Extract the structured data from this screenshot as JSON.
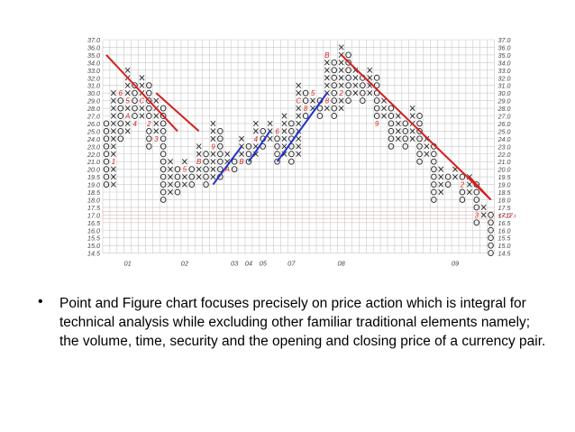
{
  "chart_data": {
    "type": "point-and-figure",
    "y_ticks": [
      "37.0",
      "36.0",
      "35.0",
      "34.0",
      "33.0",
      "32.0",
      "31.0",
      "30.0",
      "29.0",
      "28.0",
      "27.0",
      "26.0",
      "25.0",
      "24.0",
      "23.0",
      "22.0",
      "21.0",
      "20.0",
      "19.5",
      "19.0",
      "18.5",
      "18.0",
      "17.5",
      "17.0",
      "16.5",
      "16.0",
      "15.5",
      "15.0",
      "14.5"
    ],
    "current_price_label": "<<17.06",
    "x_labels": [
      "01",
      "02",
      "03",
      "04",
      "05",
      "07",
      "08",
      "09"
    ],
    "x_label_cols": [
      3,
      11,
      18,
      20,
      22,
      26,
      33,
      49
    ],
    "columns": [
      {
        "type": "O",
        "top": 19,
        "bottom": 11
      },
      {
        "type": "X",
        "top": 7,
        "bottom": 19
      },
      {
        "type": "O",
        "top": 7,
        "bottom": 13
      },
      {
        "type": "X",
        "top": 12,
        "bottom": 4
      },
      {
        "type": "O",
        "top": 6,
        "bottom": 11
      },
      {
        "type": "X",
        "top": 10,
        "bottom": 5
      },
      {
        "type": "O",
        "top": 6,
        "bottom": 14
      },
      {
        "type": "X",
        "top": 13,
        "bottom": 8
      },
      {
        "type": "O",
        "top": 9,
        "bottom": 21
      },
      {
        "type": "X",
        "top": 20,
        "bottom": 16
      },
      {
        "type": "O",
        "top": 17,
        "bottom": 20
      },
      {
        "type": "X",
        "top": 19,
        "bottom": 16
      },
      {
        "type": "O",
        "top": 17,
        "bottom": 19
      },
      {
        "type": "X",
        "top": 18,
        "bottom": 14
      },
      {
        "type": "O",
        "top": 15,
        "bottom": 19
      },
      {
        "type": "X",
        "top": 18,
        "bottom": 11
      },
      {
        "type": "O",
        "top": 12,
        "bottom": 18
      },
      {
        "type": "X",
        "top": 17,
        "bottom": 15
      },
      {
        "type": "O",
        "top": 16,
        "bottom": 17
      },
      {
        "type": "X",
        "top": 16,
        "bottom": 13
      },
      {
        "type": "O",
        "top": 14,
        "bottom": 16
      },
      {
        "type": "X",
        "top": 15,
        "bottom": 11
      },
      {
        "type": "O",
        "top": 12,
        "bottom": 14
      },
      {
        "type": "X",
        "top": 13,
        "bottom": 11
      },
      {
        "type": "O",
        "top": 12,
        "bottom": 16
      },
      {
        "type": "X",
        "top": 15,
        "bottom": 10
      },
      {
        "type": "O",
        "top": 11,
        "bottom": 16
      },
      {
        "type": "X",
        "top": 15,
        "bottom": 6
      },
      {
        "type": "O",
        "top": 7,
        "bottom": 10
      },
      {
        "type": "X",
        "top": 9,
        "bottom": 7
      },
      {
        "type": "O",
        "top": 8,
        "bottom": 10
      },
      {
        "type": "X",
        "top": 9,
        "bottom": 2
      },
      {
        "type": "O",
        "top": 3,
        "bottom": 10
      },
      {
        "type": "X",
        "top": 9,
        "bottom": 1
      },
      {
        "type": "O",
        "top": 2,
        "bottom": 8
      },
      {
        "type": "X",
        "top": 7,
        "bottom": 4
      },
      {
        "type": "O",
        "top": 5,
        "bottom": 8
      },
      {
        "type": "X",
        "top": 7,
        "bottom": 4
      },
      {
        "type": "O",
        "top": 5,
        "bottom": 11
      },
      {
        "type": "X",
        "top": 10,
        "bottom": 8
      },
      {
        "type": "O",
        "top": 9,
        "bottom": 14
      },
      {
        "type": "X",
        "top": 13,
        "bottom": 10
      },
      {
        "type": "O",
        "top": 11,
        "bottom": 14
      },
      {
        "type": "X",
        "top": 13,
        "bottom": 9
      },
      {
        "type": "O",
        "top": 10,
        "bottom": 16
      },
      {
        "type": "X",
        "top": 15,
        "bottom": 13
      },
      {
        "type": "O",
        "top": 14,
        "bottom": 21
      },
      {
        "type": "X",
        "top": 20,
        "bottom": 17
      },
      {
        "type": "O",
        "top": 18,
        "bottom": 19
      },
      {
        "type": "X",
        "top": 18,
        "bottom": 17
      },
      {
        "type": "O",
        "top": 18,
        "bottom": 21
      },
      {
        "type": "X",
        "top": 20,
        "bottom": 18
      },
      {
        "type": "O",
        "top": 19,
        "bottom": 24
      },
      {
        "type": "X",
        "top": 23,
        "bottom": 22
      },
      {
        "type": "O",
        "top": 23,
        "bottom": 28
      }
    ],
    "month_markers": [
      {
        "col": 1,
        "row": 16,
        "text": "1"
      },
      {
        "col": 2,
        "row": 7,
        "text": "6"
      },
      {
        "col": 3,
        "row": 8,
        "text": "5"
      },
      {
        "col": 3,
        "row": 10,
        "text": "A"
      },
      {
        "col": 4,
        "row": 11,
        "text": "4"
      },
      {
        "col": 5,
        "row": 8,
        "text": "C"
      },
      {
        "col": 6,
        "row": 11,
        "text": "2"
      },
      {
        "col": 7,
        "row": 13,
        "text": "3"
      },
      {
        "col": 11,
        "row": 17,
        "text": "5"
      },
      {
        "col": 13,
        "row": 16,
        "text": "B"
      },
      {
        "col": 15,
        "row": 14,
        "text": "9"
      },
      {
        "col": 17,
        "row": 17,
        "text": "A"
      },
      {
        "col": 18,
        "row": 18,
        "text": "3"
      },
      {
        "col": 19,
        "row": 16,
        "text": "B"
      },
      {
        "col": 21,
        "row": 13,
        "text": "4"
      },
      {
        "col": 22,
        "row": 16,
        "text": "6"
      },
      {
        "col": 24,
        "row": 12,
        "text": "6"
      },
      {
        "col": 26,
        "row": 7,
        "text": "1"
      },
      {
        "col": 27,
        "row": 8,
        "text": "C"
      },
      {
        "col": 28,
        "row": 9,
        "text": "8"
      },
      {
        "col": 29,
        "row": 7,
        "text": "5"
      },
      {
        "col": 31,
        "row": 8,
        "text": "8"
      },
      {
        "col": 31,
        "row": 2,
        "text": "B"
      },
      {
        "col": 33,
        "row": 7,
        "text": "2"
      },
      {
        "col": 37,
        "row": 12,
        "text": "7"
      },
      {
        "col": 38,
        "row": 11,
        "text": "9"
      },
      {
        "col": 43,
        "row": 14,
        "text": "8"
      },
      {
        "col": 45,
        "row": 16,
        "text": "7"
      },
      {
        "col": 49,
        "row": 21,
        "text": "1"
      },
      {
        "col": 50,
        "row": 19,
        "text": "2"
      },
      {
        "col": 52,
        "row": 23,
        "text": "3"
      }
    ],
    "trendlines": [
      {
        "color": "#d42020",
        "from": [
          0,
          2
        ],
        "to": [
          10,
          12
        ]
      },
      {
        "color": "#d42020",
        "from": [
          7,
          7
        ],
        "to": [
          13,
          12
        ]
      },
      {
        "color": "#d42020",
        "from": [
          33,
          2
        ],
        "to": [
          54,
          21
        ]
      },
      {
        "color": "#d42020",
        "from": [
          51,
          18
        ],
        "to": [
          54,
          21
        ]
      },
      {
        "color": "#2030d0",
        "from": [
          15,
          19
        ],
        "to": [
          19,
          14
        ]
      },
      {
        "color": "#2030d0",
        "from": [
          20,
          16
        ],
        "to": [
          23,
          12
        ]
      },
      {
        "color": "#2030d0",
        "from": [
          24,
          16
        ],
        "to": [
          31,
          7
        ]
      }
    ],
    "colors": {
      "grid": "#c8c8c8",
      "ox": "#222222",
      "marker": "#d42020",
      "uptrend": "#2030d0",
      "downtrend": "#d42020"
    }
  },
  "bullet": {
    "symbol": "•",
    "text": "Point and Figure chart focuses  precisely on price action which is integral for technical analysis while excluding other familiar traditional elements namely; the volume, time, security and the opening and closing price of a currency pair."
  }
}
